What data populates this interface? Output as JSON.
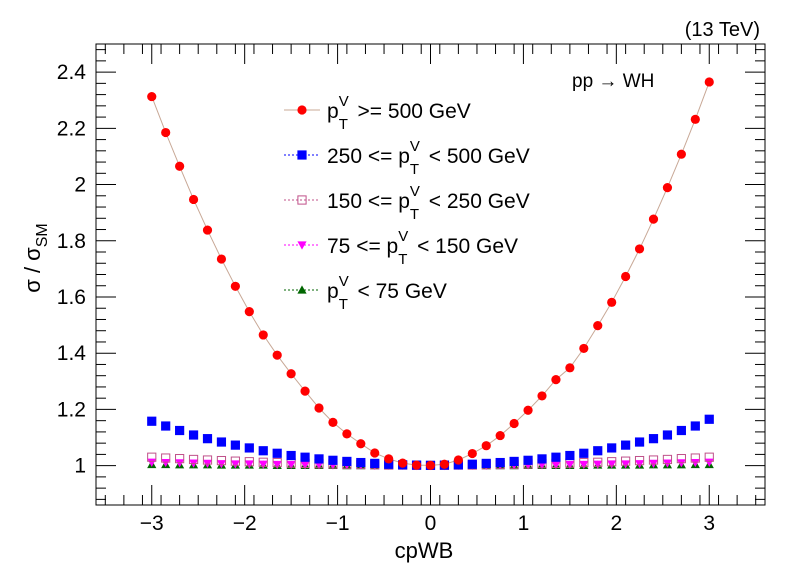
{
  "chart_data": {
    "type": "scatter",
    "title": "",
    "xlabel": "cpWB",
    "ylabel_main": "σ / σ",
    "ylabel_sub": "SM",
    "xlim": [
      -3.6,
      3.6
    ],
    "ylim": [
      0.86,
      2.5
    ],
    "xticks": [
      -3,
      -2,
      -1,
      0,
      1,
      2,
      3
    ],
    "xtick_labels": [
      "−3",
      "−2",
      "−1",
      "0",
      "1",
      "2",
      "3"
    ],
    "yticks": [
      1,
      1.2,
      1.4,
      1.6,
      1.8,
      2,
      2.2,
      2.4
    ],
    "ytick_labels": [
      "1",
      "1.2",
      "1.4",
      "1.6",
      "1.8",
      "2",
      "2.2",
      "2.4"
    ],
    "energy_label": "(13 TeV)",
    "process_label": "pp → WH",
    "x": [
      -3.0,
      -2.8,
      -2.6,
      -2.4,
      -2.2,
      -2.0,
      -1.8,
      -1.6,
      -1.4,
      -1.2,
      -1.0,
      -0.8,
      -0.6,
      -0.4,
      -0.2,
      0.0,
      0.2,
      0.4,
      0.6,
      0.8,
      1.0,
      1.2,
      1.4,
      1.6,
      1.8,
      2.0,
      2.2,
      2.4,
      2.6,
      2.8,
      3.0
    ],
    "series": [
      {
        "name": "pT^V >= 500 GeV",
        "legend": {
          "pre": "p",
          "sup": "V",
          "sub": "T",
          "post": " >= 500 GeV"
        },
        "marker": "circle",
        "color": "#ff0000",
        "line": true,
        "line_color": "#c8a896",
        "values": [
          2.313,
          2.185,
          2.065,
          1.947,
          1.838,
          1.735,
          1.638,
          1.548,
          1.465,
          1.393,
          1.327,
          1.265,
          1.205,
          1.154,
          1.113,
          1.078,
          1.045,
          1.024,
          1.009,
          1.002,
          1.001,
          1.005,
          1.02,
          1.043,
          1.071,
          1.107,
          1.15,
          1.197,
          1.248,
          1.306,
          1.348,
          1.417,
          1.498,
          1.581,
          1.673,
          1.771,
          1.877,
          1.989,
          2.108,
          2.232,
          2.365
        ],
        "x_override": [
          -3.0,
          -2.85,
          -2.7,
          -2.55,
          -2.4,
          -2.25,
          -2.1,
          -1.95,
          -1.8,
          -1.65,
          -1.5,
          -1.35,
          -1.2,
          -1.05,
          -0.9,
          -0.75,
          -0.6,
          -0.45,
          -0.3,
          -0.15,
          0.0,
          0.15,
          0.3,
          0.45,
          0.6,
          0.75,
          0.9,
          1.05,
          1.2,
          1.35,
          1.5,
          1.65,
          1.8,
          1.95,
          2.1,
          2.25,
          2.4,
          2.55,
          2.7,
          2.85,
          3.0
        ]
      },
      {
        "name": "250 <= pT^V < 500 GeV",
        "legend": {
          "pre": "250 <= p",
          "sup": "V",
          "sub": "T",
          "post": " < 500 GeV"
        },
        "marker": "square",
        "color": "#0000ff",
        "line": false,
        "values": [
          1.158,
          1.141,
          1.125,
          1.109,
          1.096,
          1.084,
          1.073,
          1.063,
          1.053,
          1.044,
          1.036,
          1.03,
          1.024,
          1.019,
          1.015,
          1.011,
          1.008,
          1.005,
          1.003,
          1.002,
          1.001,
          1.002,
          1.003,
          1.005,
          1.008,
          1.011,
          1.015,
          1.019,
          1.024,
          1.03,
          1.036,
          1.044,
          1.053,
          1.063,
          1.073,
          1.084,
          1.096,
          1.109,
          1.125,
          1.141,
          1.165
        ],
        "x_override": [
          -3.0,
          -2.85,
          -2.7,
          -2.55,
          -2.4,
          -2.25,
          -2.1,
          -1.95,
          -1.8,
          -1.65,
          -1.5,
          -1.35,
          -1.2,
          -1.05,
          -0.9,
          -0.75,
          -0.6,
          -0.45,
          -0.3,
          -0.15,
          0.0,
          0.15,
          0.3,
          0.45,
          0.6,
          0.75,
          0.9,
          1.05,
          1.2,
          1.35,
          1.5,
          1.65,
          1.8,
          1.95,
          2.1,
          2.25,
          2.4,
          2.55,
          2.7,
          2.85,
          3.0
        ]
      },
      {
        "name": "150 <= pT^V < 250 GeV",
        "legend": {
          "pre": "150 <= p",
          "sup": "V",
          "sub": "T",
          "post": " < 250 GeV"
        },
        "marker": "open-square",
        "color": "#c0508a",
        "line": false,
        "values": [
          1.03,
          1.027,
          1.025,
          1.022,
          1.02,
          1.018,
          1.016,
          1.014,
          1.012,
          1.011,
          1.009,
          1.008,
          1.007,
          1.006,
          1.005,
          1.004,
          1.003,
          1.002,
          1.002,
          1.001,
          1.001,
          1.001,
          1.002,
          1.002,
          1.003,
          1.004,
          1.005,
          1.006,
          1.007,
          1.008,
          1.009,
          1.011,
          1.012,
          1.014,
          1.016,
          1.018,
          1.02,
          1.022,
          1.025,
          1.027,
          1.03
        ],
        "x_override": [
          -3.0,
          -2.85,
          -2.7,
          -2.55,
          -2.4,
          -2.25,
          -2.1,
          -1.95,
          -1.8,
          -1.65,
          -1.5,
          -1.35,
          -1.2,
          -1.05,
          -0.9,
          -0.75,
          -0.6,
          -0.45,
          -0.3,
          -0.15,
          0.0,
          0.15,
          0.3,
          0.45,
          0.6,
          0.75,
          0.9,
          1.05,
          1.2,
          1.35,
          1.5,
          1.65,
          1.8,
          1.95,
          2.1,
          2.25,
          2.4,
          2.55,
          2.7,
          2.85,
          3.0
        ]
      },
      {
        "name": "75 <= pT^V < 150 GeV",
        "legend": {
          "pre": "75 <= p",
          "sup": "V",
          "sub": "T",
          "post": " < 150 GeV"
        },
        "marker": "triangle-down",
        "color": "#ff00ff",
        "line": false,
        "values": [
          1.012,
          1.011,
          1.01,
          1.009,
          1.008,
          1.007,
          1.006,
          1.006,
          1.005,
          1.004,
          1.004,
          1.003,
          1.003,
          1.002,
          1.002,
          1.002,
          1.001,
          1.001,
          1.001,
          1.0,
          1.0,
          1.0,
          1.001,
          1.001,
          1.001,
          1.002,
          1.002,
          1.002,
          1.003,
          1.003,
          1.004,
          1.004,
          1.005,
          1.006,
          1.006,
          1.007,
          1.008,
          1.009,
          1.01,
          1.011,
          1.012
        ],
        "x_override": [
          -3.0,
          -2.85,
          -2.7,
          -2.55,
          -2.4,
          -2.25,
          -2.1,
          -1.95,
          -1.8,
          -1.65,
          -1.5,
          -1.35,
          -1.2,
          -1.05,
          -0.9,
          -0.75,
          -0.6,
          -0.45,
          -0.3,
          -0.15,
          0.0,
          0.15,
          0.3,
          0.45,
          0.6,
          0.75,
          0.9,
          1.05,
          1.2,
          1.35,
          1.5,
          1.65,
          1.8,
          1.95,
          2.1,
          2.25,
          2.4,
          2.55,
          2.7,
          2.85,
          3.0
        ]
      },
      {
        "name": "pT^V < 75 GeV",
        "legend": {
          "pre": "p",
          "sup": "V",
          "sub": "T",
          "post": " < 75 GeV"
        },
        "marker": "triangle-up",
        "color": "#006600",
        "line": false,
        "values": [
          1.004,
          1.004,
          1.003,
          1.003,
          1.003,
          1.002,
          1.002,
          1.002,
          1.002,
          1.001,
          1.001,
          1.001,
          1.001,
          1.001,
          1.0,
          1.0,
          1.0,
          1.0,
          1.0,
          1.0,
          1.0,
          1.0,
          1.0,
          1.0,
          1.0,
          1.0,
          1.0,
          1.001,
          1.001,
          1.001,
          1.001,
          1.001,
          1.002,
          1.002,
          1.002,
          1.002,
          1.003,
          1.003,
          1.003,
          1.004,
          1.004
        ],
        "x_override": [
          -3.0,
          -2.85,
          -2.7,
          -2.55,
          -2.4,
          -2.25,
          -2.1,
          -1.95,
          -1.8,
          -1.65,
          -1.5,
          -1.35,
          -1.2,
          -1.05,
          -0.9,
          -0.75,
          -0.6,
          -0.45,
          -0.3,
          -0.15,
          0.0,
          0.15,
          0.3,
          0.45,
          0.6,
          0.75,
          0.9,
          1.05,
          1.2,
          1.35,
          1.5,
          1.65,
          1.8,
          1.95,
          2.1,
          2.25,
          2.4,
          2.55,
          2.7,
          2.85,
          3.0
        ]
      }
    ]
  }
}
